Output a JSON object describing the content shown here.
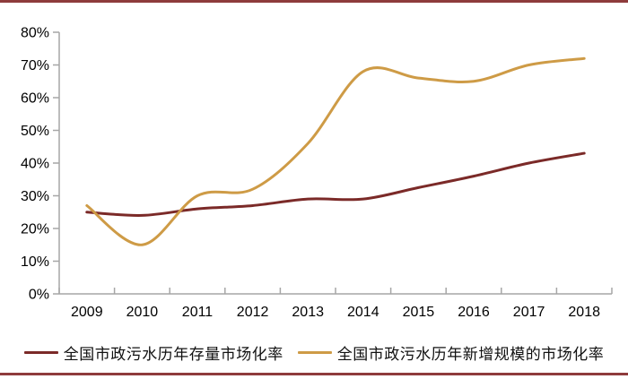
{
  "page": {
    "background": "#ffffff",
    "top_rule_color": "#8e3b3c",
    "bottom_rule_color": "#8e3b3c"
  },
  "axis": {
    "line_color": "#a6a6a6",
    "label_color": "#000000"
  },
  "chart_data": {
    "type": "line",
    "smooth": true,
    "grid": false,
    "legend_position": "bottom",
    "x": [
      "2009",
      "2010",
      "2011",
      "2012",
      "2013",
      "2014",
      "2015",
      "2016",
      "2017",
      "2018"
    ],
    "series": [
      {
        "name": "全国市政污水历年存量市场化率",
        "color": "#7b2a28",
        "values": [
          25,
          24,
          26,
          27,
          29,
          29,
          32.5,
          36,
          40,
          43
        ]
      },
      {
        "name": "全国市政污水历年新增规模的市场化率",
        "color": "#ce9b46",
        "values": [
          27,
          15,
          30,
          32,
          46,
          68,
          66,
          65,
          70,
          72
        ]
      }
    ],
    "ylim": [
      0,
      80
    ],
    "y_tick_step": 10,
    "y_tick_labels": [
      "0%",
      "10%",
      "20%",
      "30%",
      "40%",
      "50%",
      "60%",
      "70%",
      "80%"
    ],
    "xlabel": "",
    "ylabel": "",
    "title": ""
  }
}
